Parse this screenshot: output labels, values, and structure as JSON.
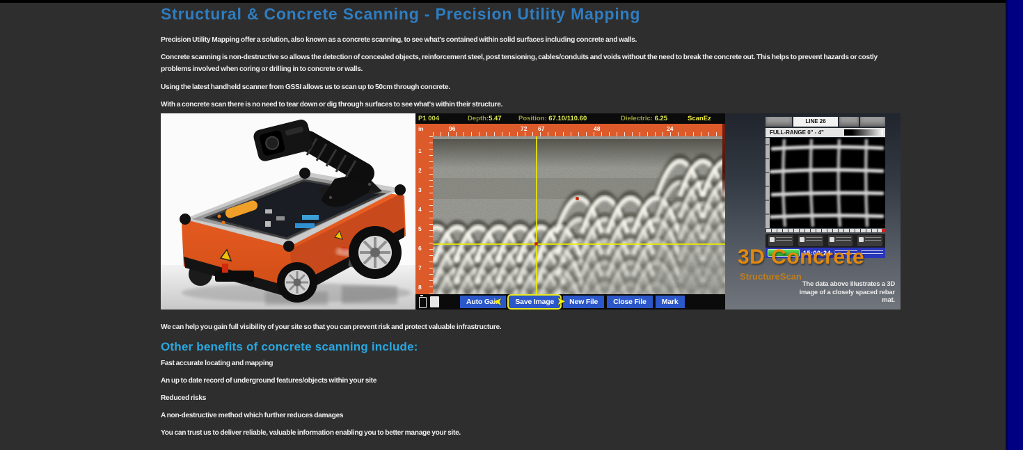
{
  "article": {
    "heading": "Structural & Concrete Scanning - Precision Utility Mapping",
    "paragraphs": [
      "Precision Utility Mapping offer a solution, also known as a concrete scanning, to see what's contained within solid surfaces including concrete and walls.",
      "Concrete scanning is non-destructive so allows the detection of concealed objects, reinforcement steel, post tensioning, cables/conduits and voids without the need to break the concrete out. This helps to prevent hazards or costly problems involved when coring or drilling in to concrete or walls.",
      "Using the latest handheld scanner from GSSI allows us to scan up to 50cm through concrete.",
      "With a concrete scan there is no need to tear down or dig through surfaces to see what's within their structure."
    ],
    "closing": "We can help you gain full visibility of your site so that you can prevent risk and protect valuable infrastructure.",
    "benefits_heading": "Other benefits of concrete scanning include:",
    "benefits": [
      "Fast accurate locating and mapping",
      "An up to date record of underground features/objects within your site",
      "Reduced risks",
      "A non-destructive method which further reduces damages",
      "You can trust us to deliver reliable, valuable information enabling you to better manage your site."
    ]
  },
  "gpr": {
    "status": {
      "file_id": "P1 004",
      "depth_label": "Depth:",
      "depth_value": "5.47",
      "position_label": "Position:",
      "position_value": "67.10/110.60",
      "dielectric_label": "Dielectric:",
      "dielectric_value": "6.25",
      "mode": "ScanEz"
    },
    "ruler_unit": "in",
    "top_ruler_marks": [
      "96",
      "72",
      "67",
      "48",
      "24"
    ],
    "depth_marks": [
      "1",
      "2",
      "3",
      "4",
      "5",
      "6",
      "7",
      "8"
    ],
    "toolbar_buttons": [
      "Auto Gain",
      "Save Image",
      "New File",
      "Close File",
      "Mark"
    ],
    "active_button": "Save Image"
  },
  "scan3d": {
    "line_label": "LINE 26",
    "range_label": "FULL-RANGE 0\" - 4\"",
    "clock": "15:00:24",
    "title": "3D Concrete",
    "subtitle": "StructureScan",
    "caption": "The data above illustrates a 3D image of a closely spaced rebar mat."
  },
  "icons": {
    "cursor_arrow": "➤"
  },
  "colors": {
    "page_bg": "#2e2e2e",
    "heading_blue": "#2f7dc1",
    "subheading_blue": "#2aa7e0",
    "body_text": "#efefef",
    "gpr_orange": "#dd5a2a",
    "gpr_value_yellow": "#e4ef55",
    "toolbar_blue": "#2b57c9",
    "highlight_yellow": "#e8ea1f",
    "scan3d_orange": "#e2890f",
    "navy_strip": "#000083"
  }
}
